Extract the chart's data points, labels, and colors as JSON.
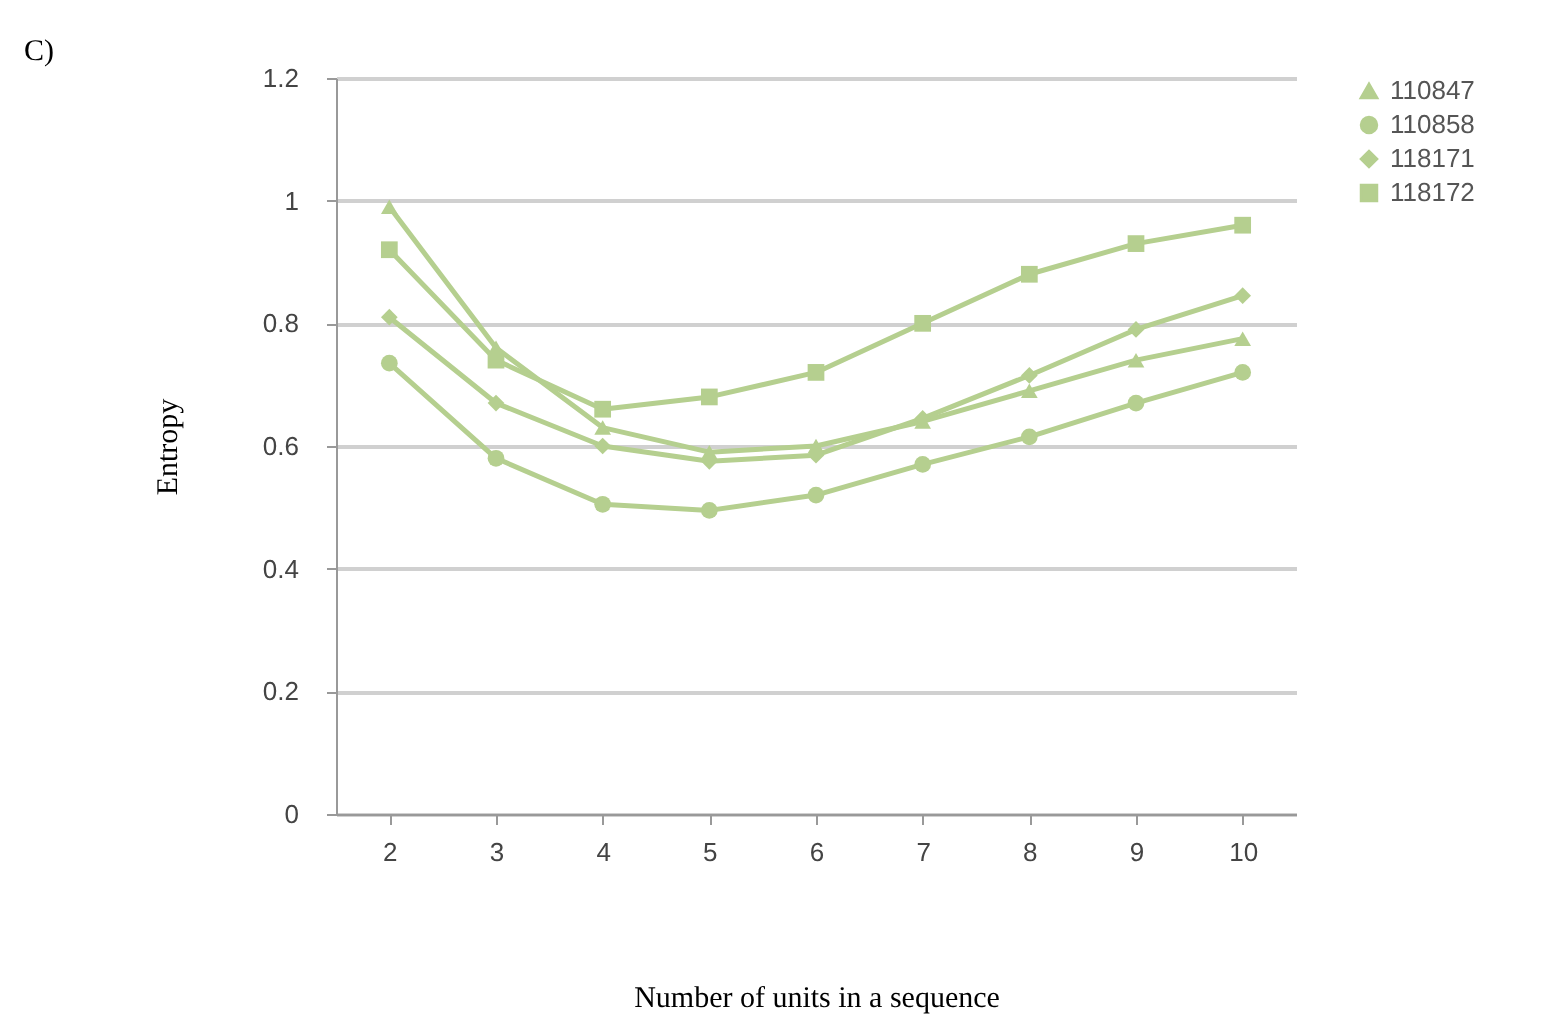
{
  "chart_data": {
    "type": "line",
    "xlabel": "Number of units in a sequence",
    "ylabel": "Entropy",
    "annotations": [
      "C)"
    ],
    "categories": [
      "2",
      "3",
      "4",
      "5",
      "6",
      "7",
      "8",
      "9",
      "10"
    ],
    "series": [
      {
        "name": "110847",
        "color": "#b5cf8f",
        "marker": "triangle",
        "values": [
          0.99,
          0.76,
          0.63,
          0.59,
          0.6,
          0.64,
          0.69,
          0.74,
          0.775
        ]
      },
      {
        "name": "110858",
        "color": "#b5cf8f",
        "marker": "circle",
        "values": [
          0.735,
          0.58,
          0.505,
          0.495,
          0.52,
          0.57,
          0.615,
          0.67,
          0.72
        ]
      },
      {
        "name": "118171",
        "color": "#b5cf8f",
        "marker": "diamond",
        "values": [
          0.81,
          0.67,
          0.6,
          0.575,
          0.585,
          0.645,
          0.715,
          0.79,
          0.845
        ]
      },
      {
        "name": "118172",
        "color": "#b5cf8f",
        "marker": "square",
        "values": [
          0.92,
          0.74,
          0.66,
          0.68,
          0.72,
          0.8,
          0.88,
          0.93,
          0.96
        ]
      }
    ],
    "ylim": [
      0,
      1.2
    ],
    "yticks": [
      0,
      0.2,
      0.4,
      0.6,
      0.8,
      1,
      1.2
    ],
    "grid": "y",
    "legend": "right",
    "line_style": "solid"
  }
}
